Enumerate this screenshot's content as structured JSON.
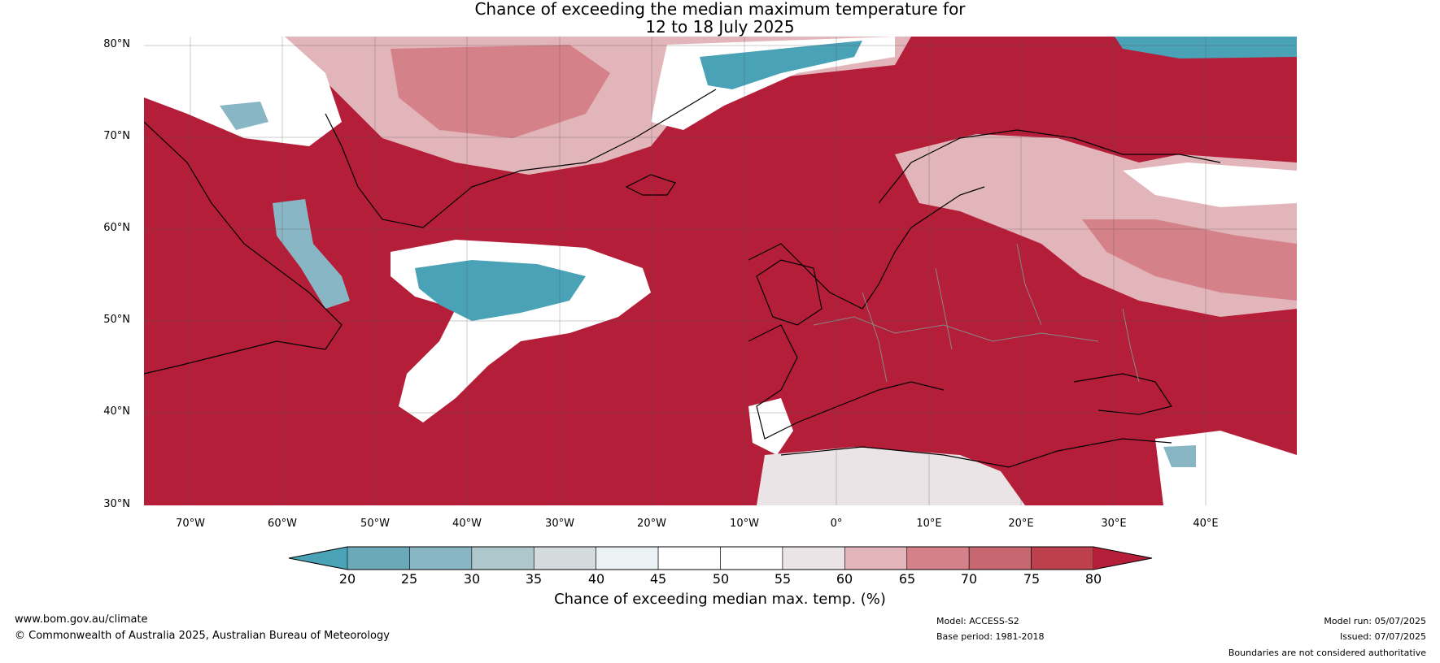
{
  "title_line1": "Chance of exceeding the median maximum temperature for",
  "title_line2": "12 to 18 July 2025",
  "lat_labels": [
    "80°N",
    "70°N",
    "60°N",
    "50°N",
    "40°N",
    "30°N"
  ],
  "lon_labels": [
    "70°W",
    "60°W",
    "50°W",
    "40°W",
    "30°W",
    "20°W",
    "10°W",
    "0°",
    "10°E",
    "20°E",
    "30°E",
    "40°E"
  ],
  "colorbar": {
    "ticks": [
      "20",
      "25",
      "30",
      "35",
      "40",
      "45",
      "50",
      "55",
      "60",
      "65",
      "70",
      "75",
      "80"
    ],
    "colors": [
      "#49a2b6",
      "#6aa9b7",
      "#88b6c4",
      "#adc7cd",
      "#d3dbdd",
      "#eaf2f3",
      "#ffffff",
      "#ffffff",
      "#ebe4e6",
      "#e2b5ba",
      "#d48189",
      "#c76870",
      "#bd404d",
      "#b51e38"
    ],
    "label": "Chance of exceeding median max. temp. (%)"
  },
  "footer": {
    "url": "www.bom.gov.au/climate",
    "copyright": "© Commonwealth of Australia 2025, Australian Bureau of Meteorology",
    "model": "Model: ACCESS-S2",
    "base_period": "Base period: 1981-2018",
    "model_run": "Model run: 05/07/2025",
    "issued": "Issued: 07/07/2025",
    "disclaimer": "Boundaries are not considered authoritative"
  }
}
